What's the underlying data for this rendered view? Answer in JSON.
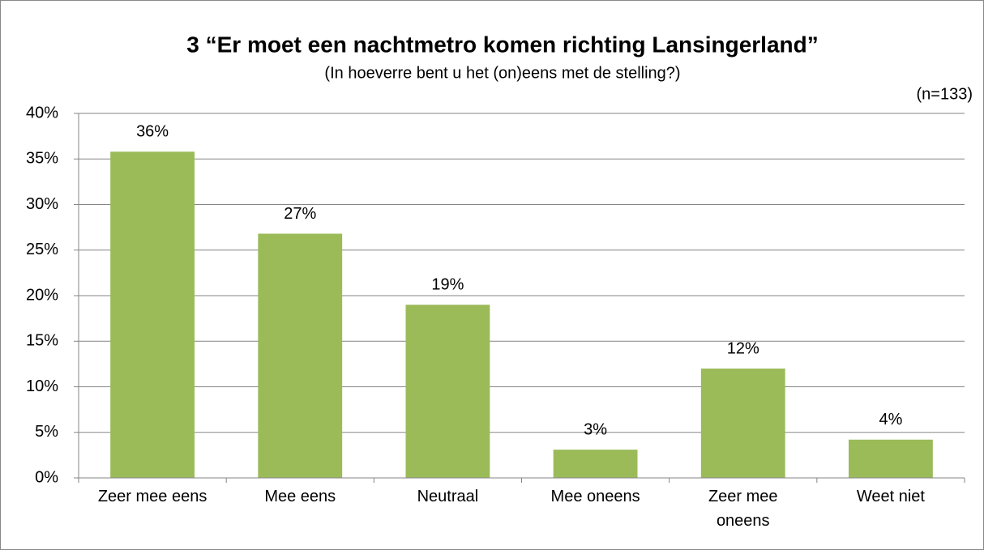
{
  "chart_data": {
    "type": "bar",
    "title": "3 “Er moet een nachtmetro komen richting Lansingerland”",
    "subtitle": "(In hoeverre bent u het (on)eens met de stelling?)",
    "annotation": "(n=133)",
    "categories": [
      "Zeer mee eens",
      "Mee eens",
      "Neutraal",
      "Mee oneens",
      "Zeer mee oneens",
      "Weet niet"
    ],
    "values": [
      35.8,
      26.8,
      19.0,
      3.1,
      12.0,
      4.2
    ],
    "value_labels": [
      "36%",
      "27%",
      "19%",
      "3%",
      "12%",
      "4%"
    ],
    "color": "#9bbb59",
    "ylim": [
      0,
      40
    ],
    "yticks": [
      {
        "value": 0,
        "label": "0%"
      },
      {
        "value": 5,
        "label": "5%"
      },
      {
        "value": 10,
        "label": "10%"
      },
      {
        "value": 15,
        "label": "15%"
      },
      {
        "value": 20,
        "label": "20%"
      },
      {
        "value": 25,
        "label": "25%"
      },
      {
        "value": 30,
        "label": "30%"
      },
      {
        "value": 35,
        "label": "35%"
      },
      {
        "value": 40,
        "label": "40%"
      }
    ],
    "grid": true
  }
}
